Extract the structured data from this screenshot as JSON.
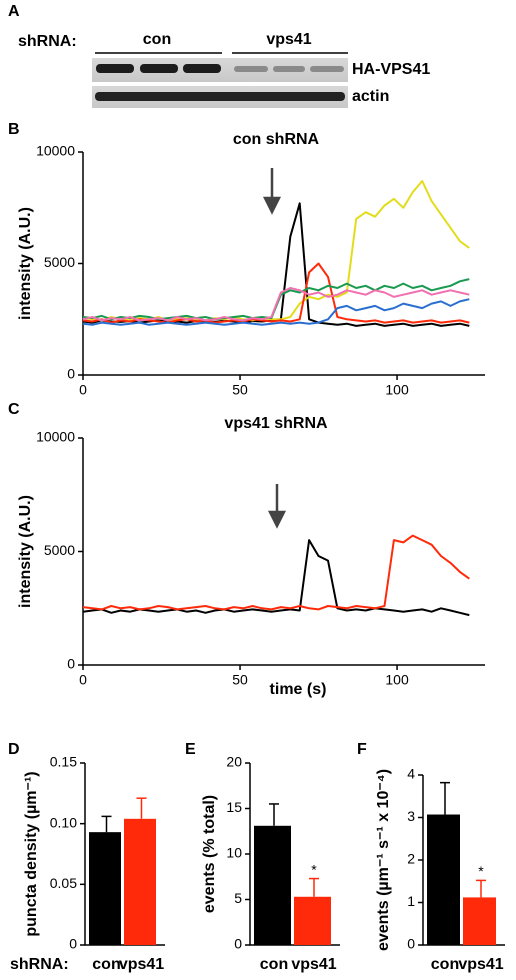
{
  "blot": {
    "panel": "A",
    "label": "shRNA:",
    "groups": [
      "con",
      "vps41"
    ],
    "rows": [
      "HA-VPS41",
      "actin"
    ]
  },
  "chart_data": [
    {
      "type": "line",
      "panel": "B",
      "title": "con shRNA",
      "ylabel": "intensity (A.U.)",
      "x": [
        0,
        3,
        6,
        9,
        12,
        15,
        18,
        21,
        24,
        27,
        30,
        33,
        36,
        39,
        42,
        45,
        48,
        51,
        54,
        57,
        60,
        63,
        66,
        69,
        72,
        75,
        78,
        81,
        84,
        87,
        90,
        93,
        96,
        99,
        102,
        105,
        108,
        111,
        114,
        117,
        120,
        123
      ],
      "xlim": [
        0,
        128
      ],
      "xticks": [
        0,
        50,
        100
      ],
      "ylim": [
        0,
        10000
      ],
      "yticks": [
        0,
        5000,
        10000
      ],
      "series": [
        {
          "color": "#000000",
          "values": [
            2400,
            2350,
            2450,
            2400,
            2380,
            2420,
            2350,
            2400,
            2450,
            2380,
            2400,
            2350,
            2420,
            2400,
            2380,
            2430,
            2400,
            2350,
            2420,
            2400,
            2450,
            2500,
            6200,
            7700,
            2500,
            2350,
            2300,
            2250,
            2300,
            2200,
            2250,
            2300,
            2200,
            2250,
            2300,
            2200,
            2250,
            2300,
            2200,
            2250,
            2300,
            2200
          ]
        },
        {
          "color": "#e3dc1c",
          "values": [
            2550,
            2500,
            2450,
            2600,
            2500,
            2450,
            2550,
            2500,
            2600,
            2450,
            2500,
            2550,
            2500,
            2450,
            2550,
            2500,
            2600,
            2500,
            2450,
            2550,
            2500,
            2500,
            2600,
            3200,
            3500,
            3400,
            3600,
            3500,
            3700,
            7000,
            7300,
            7100,
            7600,
            7900,
            7500,
            8200,
            8700,
            7800,
            7200,
            6600,
            6000,
            5700
          ]
        },
        {
          "color": "#ff2a0a",
          "values": [
            2450,
            2400,
            2500,
            2350,
            2450,
            2400,
            2500,
            2450,
            2400,
            2350,
            2450,
            2500,
            2400,
            2450,
            2350,
            2400,
            2450,
            2400,
            2500,
            2450,
            2400,
            2450,
            2400,
            2500,
            4600,
            5000,
            4400,
            2600,
            2500,
            2450,
            2400,
            2450,
            2350,
            2400,
            2450,
            2350,
            2400,
            2450,
            2350,
            2400,
            2450,
            2350
          ]
        },
        {
          "color": "#1a9a50",
          "values": [
            2600,
            2550,
            2650,
            2500,
            2600,
            2550,
            2650,
            2600,
            2500,
            2550,
            2600,
            2650,
            2550,
            2600,
            2500,
            2550,
            2600,
            2650,
            2550,
            2600,
            2550,
            3600,
            3800,
            3700,
            3900,
            3800,
            4000,
            3900,
            4100,
            3900,
            4000,
            3800,
            4000,
            3900,
            4100,
            3900,
            4000,
            3800,
            3900,
            4000,
            4200,
            4300
          ]
        },
        {
          "color": "#f070b0",
          "values": [
            2500,
            2600,
            2450,
            2550,
            2500,
            2600,
            2450,
            2500,
            2550,
            2450,
            2600,
            2500,
            2550,
            2450,
            2500,
            2600,
            2500,
            2450,
            2550,
            2500,
            2600,
            3700,
            3900,
            3800,
            3600,
            3700,
            3500,
            3600,
            3800,
            3700,
            3600,
            3800,
            3700,
            3500,
            3600,
            3700,
            3800,
            3600,
            3700,
            3800,
            3700,
            3600
          ]
        },
        {
          "color": "#2a6fd0",
          "values": [
            2300,
            2250,
            2350,
            2300,
            2250,
            2300,
            2350,
            2250,
            2300,
            2350,
            2300,
            2250,
            2300,
            2350,
            2300,
            2250,
            2300,
            2350,
            2300,
            2250,
            2300,
            2350,
            2300,
            2350,
            2300,
            2350,
            2500,
            3000,
            3100,
            2900,
            3000,
            3100,
            2900,
            3000,
            3200,
            3100,
            3000,
            3200,
            3300,
            3100,
            3300,
            3400
          ]
        }
      ]
    },
    {
      "type": "line",
      "panel": "C",
      "title": "vps41 shRNA",
      "ylabel": "intensity (A.U.)",
      "xlabel": "time (s)",
      "x": [
        0,
        3,
        6,
        9,
        12,
        15,
        18,
        21,
        24,
        27,
        30,
        33,
        36,
        39,
        42,
        45,
        48,
        51,
        54,
        57,
        60,
        63,
        66,
        69,
        72,
        75,
        78,
        81,
        84,
        87,
        90,
        93,
        96,
        99,
        102,
        105,
        108,
        111,
        114,
        117,
        120,
        123
      ],
      "xlim": [
        0,
        128
      ],
      "xticks": [
        0,
        50,
        100
      ],
      "ylim": [
        0,
        10000
      ],
      "yticks": [
        0,
        5000,
        10000
      ],
      "series": [
        {
          "color": "#000000",
          "values": [
            2350,
            2400,
            2450,
            2300,
            2400,
            2350,
            2450,
            2400,
            2350,
            2400,
            2450,
            2350,
            2400,
            2300,
            2400,
            2450,
            2350,
            2400,
            2450,
            2400,
            2350,
            2400,
            2450,
            2400,
            5500,
            4800,
            4600,
            2500,
            2400,
            2450,
            2400,
            2500,
            2450,
            2400,
            2350,
            2400,
            2450,
            2350,
            2500,
            2400,
            2300,
            2200
          ]
        },
        {
          "color": "#ff2a0a",
          "values": [
            2550,
            2500,
            2450,
            2600,
            2500,
            2550,
            2450,
            2500,
            2600,
            2550,
            2450,
            2500,
            2550,
            2600,
            2500,
            2450,
            2550,
            2500,
            2600,
            2500,
            2450,
            2550,
            2500,
            2600,
            2500,
            2450,
            2600,
            2550,
            2500,
            2600,
            2550,
            2500,
            2600,
            5500,
            5400,
            5700,
            5500,
            5300,
            4800,
            4500,
            4100,
            3800
          ]
        }
      ]
    },
    {
      "type": "bar",
      "panel": "D",
      "ylabel": "puncta density (µm⁻¹)",
      "xlabel": "shRNA:",
      "categories": [
        "con",
        "vps41"
      ],
      "values": [
        0.093,
        0.104
      ],
      "errors": [
        0.013,
        0.017
      ],
      "colors": [
        "#000000",
        "#ff2a0a"
      ],
      "ylim": [
        0,
        0.15
      ],
      "yticks": [
        0,
        0.05,
        {
          "value": 0.1,
          "label": "0.10"
        },
        0.15
      ]
    },
    {
      "type": "bar",
      "panel": "E",
      "ylabel": "events (% total)",
      "annotation": "*",
      "categories": [
        "con",
        "vps41"
      ],
      "values": [
        13.1,
        5.3
      ],
      "errors": [
        2.4,
        2.0
      ],
      "colors": [
        "#000000",
        "#ff2a0a"
      ],
      "ylim": [
        0,
        20
      ],
      "yticks": [
        0,
        5,
        10,
        15,
        20
      ]
    },
    {
      "type": "bar",
      "panel": "F",
      "ylabel": "events (µm⁻¹ s⁻¹ x 10⁻⁴)",
      "annotation": "*",
      "categories": [
        "con",
        "vps41"
      ],
      "values": [
        3.07,
        1.12
      ],
      "errors": [
        0.75,
        0.4
      ],
      "colors": [
        "#000000",
        "#ff2a0a"
      ],
      "ylim": [
        0,
        4
      ],
      "yticks": [
        0,
        1,
        2,
        3,
        4
      ]
    }
  ]
}
